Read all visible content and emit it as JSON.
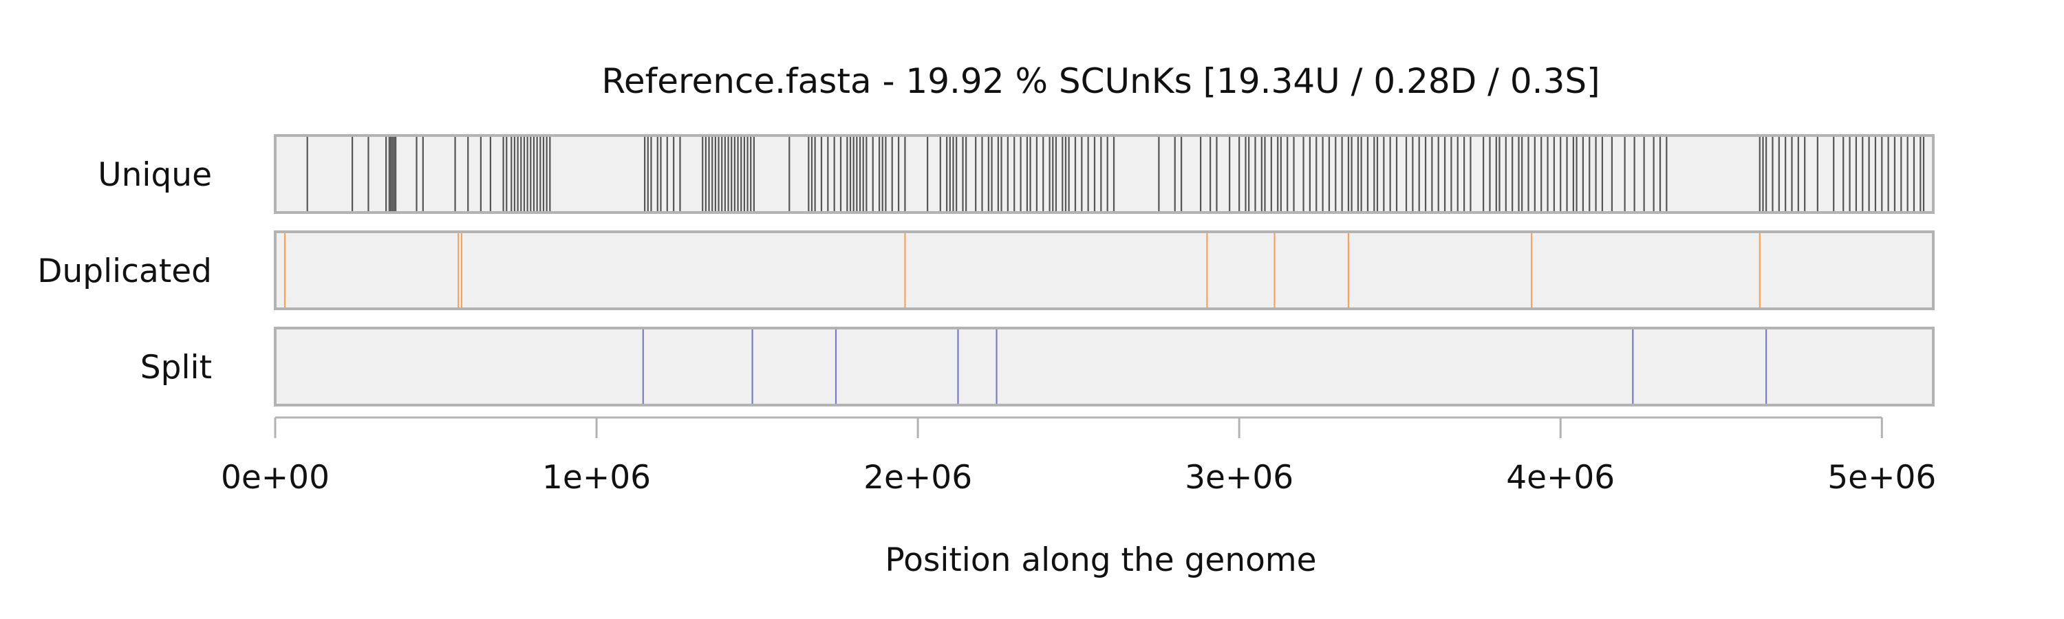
{
  "chart_data": {
    "type": "genome-track",
    "title": "Reference.fasta - 19.92 % SCUnKs [19.34U / 0.28D / 0.3S]",
    "xlabel": "Position along the genome",
    "ylabel": "",
    "xlim": [
      0,
      5160000
    ],
    "x_ticks": [
      {
        "value": 0,
        "label": "0e+00"
      },
      {
        "value": 1000000,
        "label": "1e+06"
      },
      {
        "value": 2000000,
        "label": "2e+06"
      },
      {
        "value": 3000000,
        "label": "3e+06"
      },
      {
        "value": 4000000,
        "label": "4e+06"
      },
      {
        "value": 5000000,
        "label": "5e+06"
      }
    ],
    "grid": false,
    "background_color": "#f0f0f0",
    "border_color": "#b3b3b3",
    "tracks": [
      {
        "name": "Unique",
        "color": "#555555",
        "positions": [
          100000,
          240000,
          290000,
          345000,
          355000,
          360000,
          365000,
          370000,
          375000,
          440000,
          460000,
          560000,
          600000,
          640000,
          670000,
          710000,
          720000,
          735000,
          745000,
          755000,
          765000,
          775000,
          785000,
          795000,
          805000,
          815000,
          825000,
          835000,
          845000,
          855000,
          1150000,
          1160000,
          1170000,
          1190000,
          1200000,
          1220000,
          1240000,
          1260000,
          1330000,
          1340000,
          1350000,
          1360000,
          1370000,
          1380000,
          1390000,
          1400000,
          1410000,
          1420000,
          1430000,
          1440000,
          1450000,
          1460000,
          1470000,
          1480000,
          1490000,
          1600000,
          1660000,
          1670000,
          1680000,
          1700000,
          1720000,
          1740000,
          1760000,
          1780000,
          1790000,
          1800000,
          1810000,
          1820000,
          1830000,
          1840000,
          1860000,
          1880000,
          1890000,
          1900000,
          1920000,
          1940000,
          1960000,
          2030000,
          2070000,
          2090000,
          2100000,
          2110000,
          2120000,
          2140000,
          2150000,
          2180000,
          2200000,
          2220000,
          2230000,
          2250000,
          2260000,
          2280000,
          2300000,
          2320000,
          2340000,
          2350000,
          2370000,
          2390000,
          2410000,
          2420000,
          2430000,
          2450000,
          2460000,
          2470000,
          2490000,
          2510000,
          2530000,
          2550000,
          2570000,
          2590000,
          2610000,
          2750000,
          2800000,
          2820000,
          2880000,
          2910000,
          2930000,
          2970000,
          3000000,
          3020000,
          3030000,
          3050000,
          3070000,
          3080000,
          3100000,
          3120000,
          3130000,
          3150000,
          3170000,
          3200000,
          3220000,
          3240000,
          3260000,
          3280000,
          3300000,
          3320000,
          3340000,
          3350000,
          3370000,
          3380000,
          3400000,
          3420000,
          3430000,
          3450000,
          3470000,
          3490000,
          3520000,
          3540000,
          3560000,
          3580000,
          3600000,
          3620000,
          3640000,
          3660000,
          3680000,
          3700000,
          3720000,
          3760000,
          3780000,
          3800000,
          3810000,
          3830000,
          3850000,
          3870000,
          3880000,
          3900000,
          3920000,
          3940000,
          3960000,
          3980000,
          4000000,
          4020000,
          4040000,
          4050000,
          4070000,
          4090000,
          4110000,
          4130000,
          4160000,
          4200000,
          4230000,
          4260000,
          4290000,
          4310000,
          4330000,
          4620000,
          4630000,
          4640000,
          4660000,
          4680000,
          4700000,
          4720000,
          4740000,
          4760000,
          4800000,
          4850000,
          4880000,
          4900000,
          4920000,
          4940000,
          4960000,
          4980000,
          5000000,
          5020000,
          5040000,
          5060000,
          5080000,
          5100000,
          5120000,
          5130000
        ]
      },
      {
        "name": "Duplicated",
        "color": "#f5a25d",
        "positions": [
          30000,
          570000,
          580000,
          1960000,
          2900000,
          3110000,
          3340000,
          3910000,
          4620000
        ]
      },
      {
        "name": "Split",
        "color": "#7b7bc4",
        "positions": [
          1145000,
          1485000,
          1745000,
          2125000,
          2245000,
          4225000,
          4640000
        ]
      }
    ]
  }
}
